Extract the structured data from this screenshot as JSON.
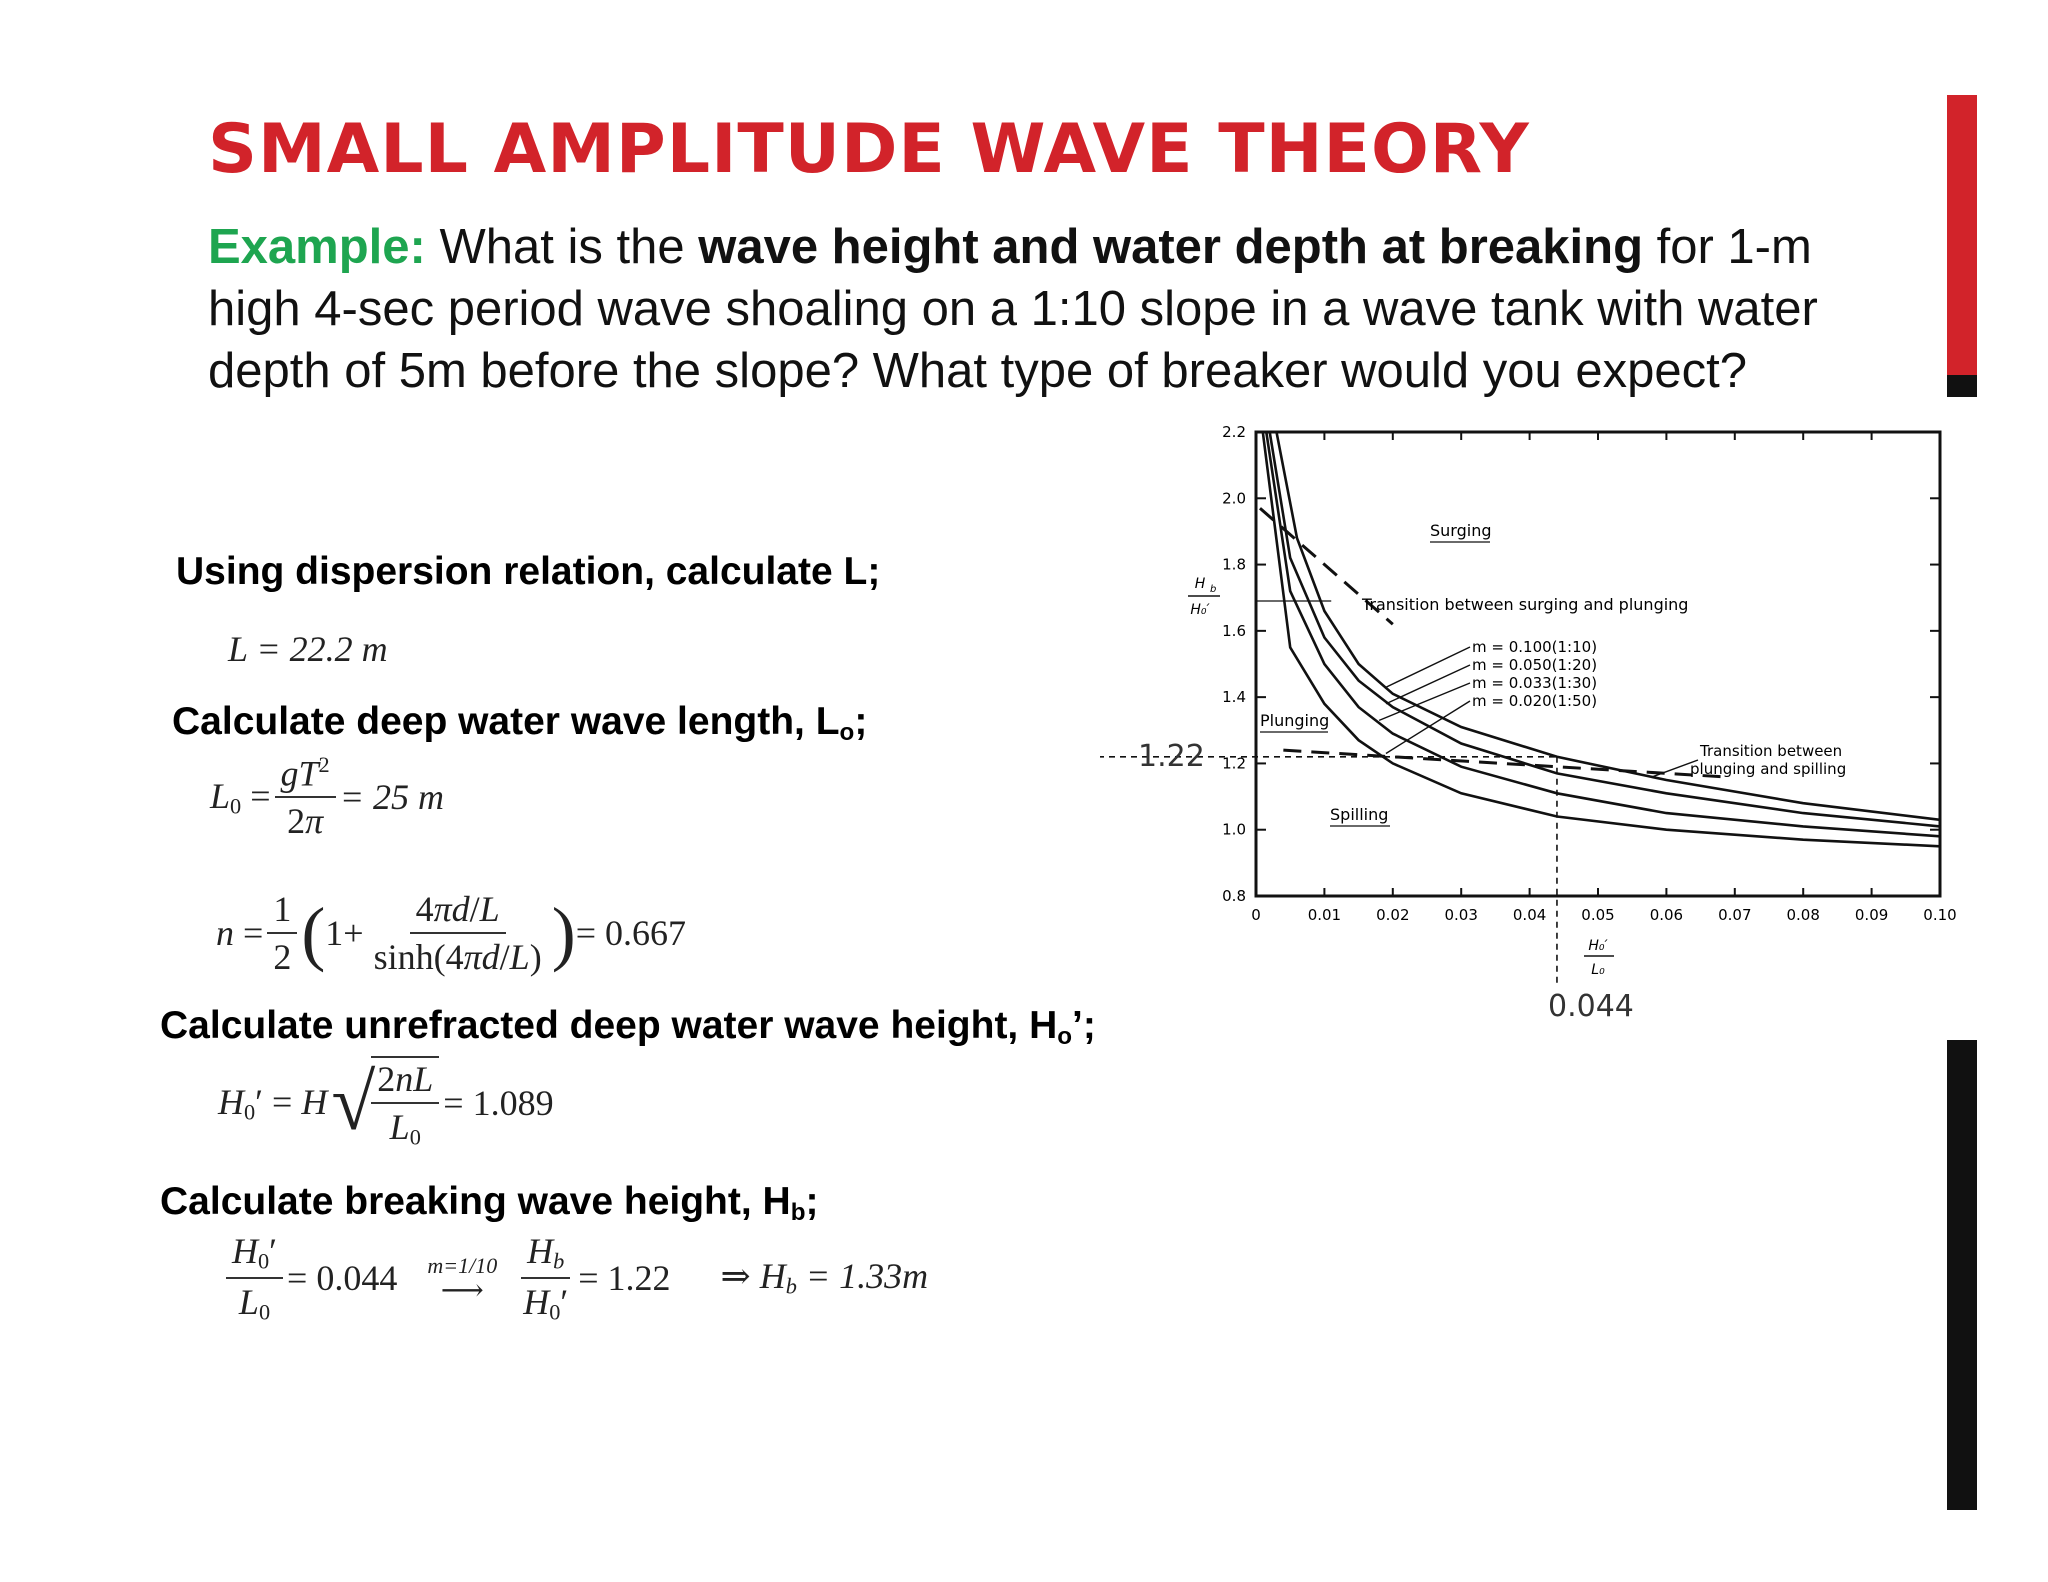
{
  "title": "SMALL AMPLITUDE WAVE THEORY",
  "question": {
    "label": "Example:",
    "t1": " What is the ",
    "bold": "wave height and water depth at breaking",
    "t2": " for 1-m high 4-sec period wave shoaling on a 1:10 slope in a wave tank with water depth of 5m before the slope? What type of breaker would you expect?"
  },
  "steps": {
    "s1": "Using dispersion relation, calculate L;",
    "s2_main": "Calculate deep water wave length, L",
    "s2_sub": "o",
    "s2_end": ";",
    "s3_main": "Calculate unrefracted deep water wave height, H",
    "s3_sub": "o",
    "s3_end": "’;",
    "s4_main": "Calculate breaking wave height, H",
    "s4_sub": "b",
    "s4_end": ";"
  },
  "equations": {
    "L": "L = 22.2 m",
    "L0_val": "= 25 m",
    "n_val": "= 0.667",
    "H0_val": "= 1.089",
    "ratio_val": "= 0.044",
    "arrow_label": "m=1/10",
    "hb_ratio_val": "= 1.22",
    "hb_result": "⇒ H",
    "hb_result_val": "= 1.33m"
  },
  "chart_data": {
    "type": "line",
    "xlabel": "H₀′ / L₀",
    "ylabel": "H_b / H₀′",
    "xlim": [
      0,
      0.1
    ],
    "ylim": [
      0.8,
      2.2
    ],
    "x_ticks": [
      "0",
      "0.01",
      "0.02",
      "0.03",
      "0.04",
      "0.05",
      "0.06",
      "0.07",
      "0.08",
      "0.09",
      "0.10"
    ],
    "y_ticks": [
      "0.8",
      "1.0",
      "1.2",
      "1.4",
      "1.6",
      "1.8",
      "2.0",
      "2.2"
    ],
    "regions": [
      "Surging",
      "Plunging",
      "Spilling"
    ],
    "transition_labels": [
      "Transition between surging and plunging",
      "Transition between",
      "plunging and spilling"
    ],
    "legend": [
      "m = 0.100(1:10)",
      "m = 0.050(1:20)",
      "m = 0.033(1:30)",
      "m = 0.020(1:50)"
    ],
    "series": [
      {
        "name": "m = 0.100(1:10)",
        "x": [
          0.003,
          0.006,
          0.01,
          0.015,
          0.02,
          0.03,
          0.044,
          0.06,
          0.08,
          0.1
        ],
        "y": [
          2.2,
          1.88,
          1.66,
          1.5,
          1.41,
          1.31,
          1.22,
          1.15,
          1.08,
          1.03
        ]
      },
      {
        "name": "m = 0.050(1:20)",
        "x": [
          0.002,
          0.005,
          0.01,
          0.015,
          0.02,
          0.03,
          0.044,
          0.06,
          0.08,
          0.1
        ],
        "y": [
          2.2,
          1.82,
          1.58,
          1.45,
          1.37,
          1.26,
          1.17,
          1.11,
          1.05,
          1.01
        ]
      },
      {
        "name": "m = 0.033(1:30)",
        "x": [
          0.0015,
          0.005,
          0.01,
          0.015,
          0.02,
          0.03,
          0.044,
          0.06,
          0.08,
          0.1
        ],
        "y": [
          2.2,
          1.72,
          1.5,
          1.37,
          1.29,
          1.19,
          1.11,
          1.05,
          1.01,
          0.98
        ]
      },
      {
        "name": "m = 0.020(1:50)",
        "x": [
          0.001,
          0.005,
          0.01,
          0.015,
          0.02,
          0.03,
          0.044,
          0.06,
          0.08,
          0.1
        ],
        "y": [
          2.2,
          1.55,
          1.38,
          1.27,
          1.2,
          1.11,
          1.04,
          1.0,
          0.97,
          0.95
        ]
      }
    ],
    "annotations": {
      "x_mark": "0.044",
      "y_mark": "1.22"
    }
  }
}
